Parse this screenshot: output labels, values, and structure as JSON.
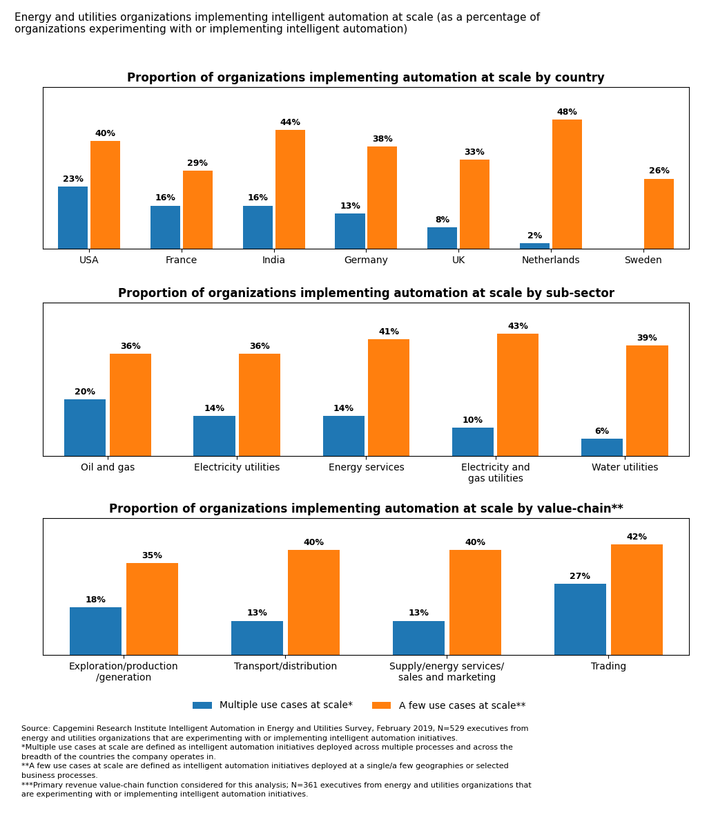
{
  "title": "Energy and utilities organizations implementing intelligent automation at scale (as a percentage of\norganizations experimenting with or implementing intelligent automation)",
  "legend": "upper center",
  "annotations": [
    "Source: Capgemini Research Institute Intelligent Automation in Energy and Utilities Survey, February 2019, N=529 executives from\nenergy and utilities organizations that are experimenting with or implementing intelligent automation initiatives.\n*Multiple use cases at scale are defined as intelligent automation initiatives deployed across multiple processes and across the\nbreadth of the countries the company operates in.\n**A few use cases at scale are defined as intelligent automation initiatives deployed at a single/a few geographies or selected\nbusiness processes.\n***Primary revenue value-chain function considered for this analysis; N=361 executives from energy and utilities organizations that\nare experimenting with or implementing intelligent automation initiatives."
  ],
  "chart_data": [
    {
      "type": "bar",
      "title": "Proportion of organizations implementing automation at scale by country",
      "categories": [
        "USA",
        "France",
        "India",
        "Germany",
        "UK",
        "Netherlands",
        "Sweden"
      ],
      "series": [
        {
          "name": "Multiple use cases at scale*",
          "values": [
            23,
            16,
            16,
            13,
            8,
            2,
            0
          ],
          "value_labels": [
            "23%",
            "16%",
            "16%",
            "13%",
            "8%",
            "2%",
            null
          ]
        },
        {
          "name": "A few use cases at scale**",
          "values": [
            40,
            29,
            44,
            38,
            33,
            48,
            26
          ],
          "value_labels": [
            "40%",
            "29%",
            "44%",
            "38%",
            "33%",
            "48%",
            "26%"
          ]
        }
      ],
      "ylim": [
        0,
        60
      ],
      "tick_labels": "x",
      "data_labels": true
    },
    {
      "type": "bar",
      "title": "Proportion of organizations implementing automation at scale by sub-sector",
      "categories": [
        "Oil and gas",
        "Electricity utilities",
        "Energy services",
        "Electricity and\ngas utilities",
        "Water utilities"
      ],
      "series": [
        {
          "name": "Multiple use cases at scale*",
          "values": [
            20,
            14,
            14,
            10,
            6
          ],
          "value_labels": [
            "20%",
            "14%",
            "14%",
            "10%",
            "6%"
          ]
        },
        {
          "name": "A few use cases at scale**",
          "values": [
            36,
            36,
            41,
            43,
            39
          ],
          "value_labels": [
            "36%",
            "36%",
            "41%",
            "43%",
            "39%"
          ]
        }
      ],
      "ylim": [
        0,
        54
      ],
      "tick_labels": "x",
      "data_labels": true
    },
    {
      "type": "bar",
      "title": "Proportion of organizations implementing automation at scale by value-chain**",
      "categories": [
        "Exploration/production\n/generation",
        "Transport/distribution",
        "Supply/energy services/\nsales and marketing",
        "Trading"
      ],
      "series": [
        {
          "name": "Multiple use cases at scale*",
          "values": [
            18,
            13,
            13,
            27
          ],
          "value_labels": [
            "18%",
            "13%",
            "13%",
            "27%"
          ]
        },
        {
          "name": "A few use cases at scale**",
          "values": [
            35,
            40,
            40,
            42
          ],
          "value_labels": [
            "35%",
            "40%",
            "40%",
            "42%"
          ]
        }
      ],
      "ylim": [
        0,
        52
      ],
      "tick_labels": "x",
      "data_labels": true
    }
  ]
}
